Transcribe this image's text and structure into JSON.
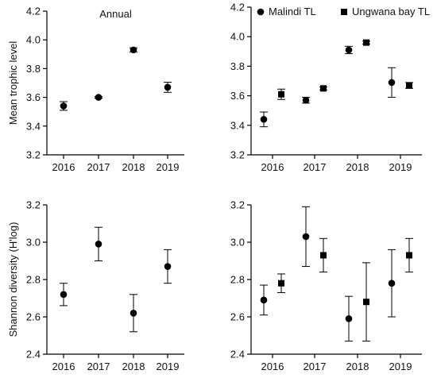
{
  "chart_data": [
    {
      "type": "scatter",
      "panel": "top-left",
      "title": "Annual",
      "ylabel": "Mean trophic level",
      "ylim": [
        3.2,
        4.2
      ],
      "yticks": [
        "3.2",
        "3.4",
        "3.6",
        "3.8",
        "4.0",
        "4.2"
      ],
      "categories": [
        "2016",
        "2017",
        "2018",
        "2019"
      ],
      "series": [
        {
          "marker": "circle",
          "values": [
            3.54,
            3.6,
            3.93,
            3.67
          ],
          "err": [
            0.03,
            0.005,
            0.015,
            0.035
          ]
        }
      ],
      "grid": false
    },
    {
      "type": "scatter",
      "panel": "top-right",
      "ylim": [
        3.2,
        4.2
      ],
      "yticks": [
        "3.2",
        "3.4",
        "3.6",
        "3.8",
        "4.0",
        "4.2"
      ],
      "categories": [
        "2016",
        "2017",
        "2018",
        "2019"
      ],
      "legend": {
        "placement": "top"
      },
      "series": [
        {
          "name": "Malindi TL",
          "marker": "circle",
          "values": [
            3.44,
            3.57,
            3.91,
            3.69
          ],
          "err": [
            0.05,
            0.02,
            0.025,
            0.1
          ]
        },
        {
          "name": "Ungwana bay TL",
          "marker": "square",
          "values": [
            3.61,
            3.65,
            3.96,
            3.67
          ],
          "err": [
            0.035,
            0.01,
            0.01,
            0.02
          ]
        }
      ],
      "grid": false
    },
    {
      "type": "scatter",
      "panel": "bottom-left",
      "ylabel": "Shannon diversity  (H'log)",
      "ylim": [
        2.4,
        3.2
      ],
      "yticks": [
        "2.4",
        "2.6",
        "2.8",
        "3.0",
        "3.2"
      ],
      "categories": [
        "2016",
        "2017",
        "2018",
        "2019"
      ],
      "series": [
        {
          "marker": "circle",
          "values": [
            2.72,
            2.99,
            2.62,
            2.87
          ],
          "err": [
            0.06,
            0.09,
            0.1,
            0.09
          ]
        }
      ],
      "grid": false
    },
    {
      "type": "scatter",
      "panel": "bottom-right",
      "ylim": [
        2.4,
        3.2
      ],
      "yticks": [
        "2.4",
        "2.6",
        "2.8",
        "3.0",
        "3.2"
      ],
      "categories": [
        "2016",
        "2017",
        "2018",
        "2019"
      ],
      "series": [
        {
          "name": "Malindi TL",
          "marker": "circle",
          "values": [
            2.69,
            3.03,
            2.59,
            2.78
          ],
          "err": [
            0.08,
            0.16,
            0.12,
            0.18
          ]
        },
        {
          "name": "Ungwana bay TL",
          "marker": "square",
          "values": [
            2.78,
            2.93,
            2.68,
            2.93
          ],
          "err": [
            0.05,
            0.09,
            0.21,
            0.09
          ]
        }
      ],
      "grid": false
    }
  ]
}
